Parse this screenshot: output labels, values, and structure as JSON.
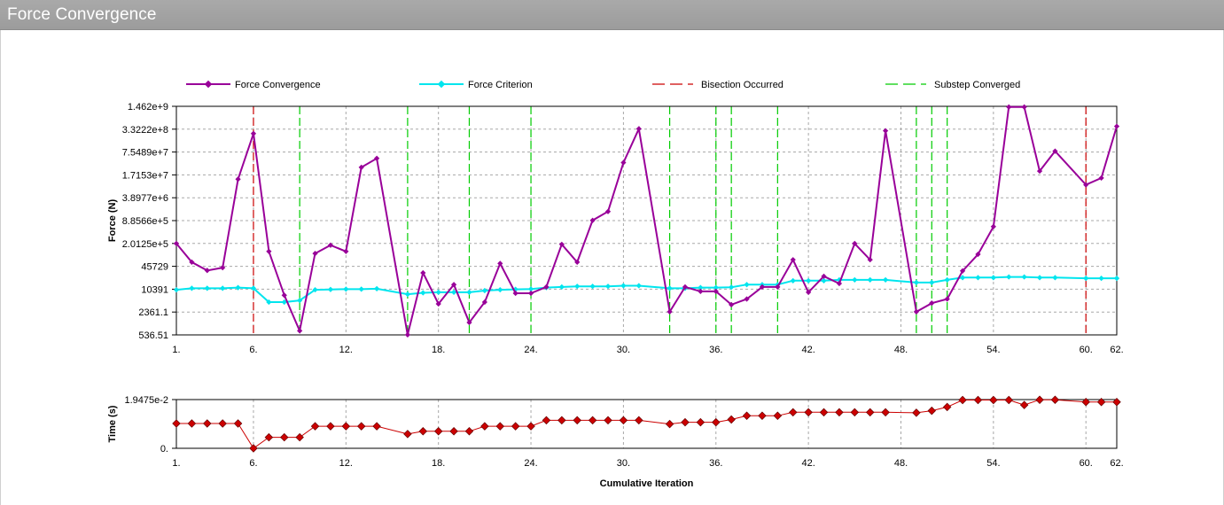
{
  "window": {
    "title": "Force Convergence"
  },
  "colors": {
    "force": "#990099",
    "criterion": "#00e5ee",
    "bisection": "#cc0000",
    "substep": "#00cc00",
    "time": "#cc0000",
    "grid": "#a8a8a8"
  },
  "legend": [
    {
      "label": "Force Convergence",
      "style": "line-marker",
      "color_key": "force"
    },
    {
      "label": "Force Criterion",
      "style": "line-marker",
      "color_key": "criterion"
    },
    {
      "label": "Bisection Occurred",
      "style": "dash",
      "color_key": "bisection"
    },
    {
      "label": "Substep Converged",
      "style": "dash",
      "color_key": "substep"
    }
  ],
  "chart_data": [
    {
      "type": "line",
      "scale": "log",
      "ylabel": "Force (N)",
      "xlabel": "",
      "xlim": [
        1,
        62
      ],
      "ylim": [
        536.51,
        1462000000
      ],
      "x_ticks": [
        "1.",
        "6.",
        "12.",
        "18.",
        "24.",
        "30.",
        "36.",
        "42.",
        "48.",
        "54.",
        "60.",
        "62."
      ],
      "x_tick_values": [
        1,
        6,
        12,
        18,
        24,
        30,
        36,
        42,
        48,
        54,
        60,
        62
      ],
      "y_ticks": [
        "1.462e+9",
        "3.3222e+8",
        "7.5489e+7",
        "1.7153e+7",
        "3.8977e+6",
        "8.8566e+5",
        "2.0125e+5",
        "45729",
        "10391",
        "2361.1",
        "536.51"
      ],
      "y_tick_values": [
        1462000000,
        332220000,
        75489000,
        17153000,
        3897700,
        885660,
        201250,
        45729,
        10391,
        2361.1,
        536.51
      ],
      "grid": true,
      "legend_position": "top",
      "series": [
        {
          "name": "Force Convergence",
          "color_key": "force",
          "x": [
            1,
            2,
            3,
            4,
            5,
            6,
            7,
            8,
            9,
            10,
            11,
            12,
            13,
            14,
            16,
            17,
            18,
            19,
            20,
            21,
            22,
            23,
            24,
            25,
            26,
            27,
            28,
            29,
            30,
            31,
            33,
            34,
            35,
            36,
            37,
            38,
            39,
            40,
            41,
            42,
            43,
            44,
            45,
            46,
            47,
            49,
            50,
            51,
            52,
            53,
            54,
            55,
            56,
            57,
            58,
            60,
            61,
            62
          ],
          "y": [
            200000,
            60000,
            35000,
            42000,
            13000000,
            250000000,
            120000,
            7000,
            700,
            105000,
            180000,
            120000,
            28000000,
            50000000,
            540,
            30000,
            4000,
            14000,
            1200,
            4500,
            55000,
            8000,
            8000,
            12000,
            190000,
            60000,
            900000,
            1600000,
            38000000,
            340000000,
            2400,
            12000,
            9000,
            9000,
            3800,
            5500,
            12000,
            12000,
            70000,
            8500,
            24000,
            15000,
            200000,
            70000,
            300000000,
            2400,
            4200,
            5500,
            34000,
            100000,
            600000,
            1400000000,
            1400000000,
            22000000,
            80000000,
            9000000,
            14000000,
            400000000
          ]
        },
        {
          "name": "Force Criterion",
          "color_key": "criterion",
          "x": [
            1,
            2,
            3,
            4,
            5,
            6,
            7,
            8,
            9,
            10,
            11,
            12,
            13,
            14,
            16,
            17,
            18,
            19,
            20,
            21,
            22,
            23,
            24,
            25,
            26,
            27,
            28,
            29,
            30,
            31,
            33,
            34,
            35,
            36,
            37,
            38,
            39,
            40,
            41,
            42,
            43,
            44,
            45,
            46,
            47,
            49,
            50,
            51,
            52,
            53,
            54,
            55,
            56,
            57,
            58,
            60,
            61,
            62
          ],
          "y": [
            10000,
            11000,
            11000,
            11000,
            11500,
            11000,
            4500,
            4500,
            5000,
            10000,
            10200,
            10391,
            10391,
            10700,
            7500,
            8200,
            8500,
            8500,
            8500,
            9500,
            10000,
            10300,
            10500,
            11500,
            12000,
            12500,
            12500,
            12500,
            13000,
            13000,
            11000,
            11000,
            11500,
            11500,
            11800,
            14000,
            14000,
            14000,
            18000,
            18000,
            18000,
            19000,
            19000,
            19000,
            19000,
            16000,
            16000,
            19000,
            22000,
            22000,
            22000,
            23000,
            23000,
            22000,
            22000,
            21000,
            21000,
            21000
          ]
        }
      ],
      "bisections": [
        6,
        60
      ],
      "substeps": [
        9,
        16,
        20,
        24,
        33,
        36,
        37,
        40,
        49,
        50,
        51
      ]
    },
    {
      "type": "line",
      "ylabel": "Time (s)",
      "xlabel": "Cumulative Iteration",
      "xlim": [
        1,
        62
      ],
      "ylim": [
        0,
        0.019475
      ],
      "x_ticks": [
        "1.",
        "6.",
        "12.",
        "18.",
        "24.",
        "30.",
        "36.",
        "42.",
        "48.",
        "54.",
        "60.",
        "62."
      ],
      "x_tick_values": [
        1,
        6,
        12,
        18,
        24,
        30,
        36,
        42,
        48,
        54,
        60,
        62
      ],
      "y_ticks": [
        "1.9475e-2",
        "0."
      ],
      "y_tick_values": [
        0.019475,
        0
      ],
      "grid": true,
      "series": [
        {
          "name": "",
          "color_key": "time",
          "x": [
            1,
            2,
            3,
            4,
            5,
            6,
            7,
            8,
            9,
            10,
            11,
            12,
            13,
            14,
            16,
            17,
            18,
            19,
            20,
            21,
            22,
            23,
            24,
            25,
            26,
            27,
            28,
            29,
            30,
            31,
            33,
            34,
            35,
            36,
            37,
            38,
            39,
            40,
            41,
            42,
            43,
            44,
            45,
            46,
            47,
            49,
            50,
            51,
            52,
            53,
            54,
            55,
            56,
            57,
            58,
            60,
            61,
            62
          ],
          "y": [
            0.0099,
            0.0099,
            0.0099,
            0.0099,
            0.0099,
            0.0,
            0.0044,
            0.0044,
            0.0044,
            0.0088,
            0.0088,
            0.0088,
            0.0088,
            0.0088,
            0.0057,
            0.0068,
            0.0068,
            0.0068,
            0.0068,
            0.0088,
            0.0088,
            0.0088,
            0.0088,
            0.0112,
            0.0112,
            0.0112,
            0.0112,
            0.0112,
            0.0112,
            0.0112,
            0.0097,
            0.0104,
            0.0104,
            0.0104,
            0.0115,
            0.013,
            0.013,
            0.013,
            0.0144,
            0.0144,
            0.0144,
            0.0144,
            0.0144,
            0.0144,
            0.0144,
            0.0142,
            0.015,
            0.0165,
            0.0193,
            0.0193,
            0.0193,
            0.0193,
            0.0173,
            0.0194,
            0.0194,
            0.0185,
            0.0185,
            0.0185
          ]
        }
      ]
    }
  ]
}
